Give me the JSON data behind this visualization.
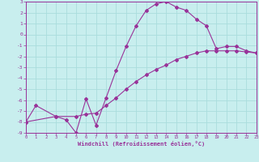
{
  "xlabel": "Windchill (Refroidissement éolien,°C)",
  "ylim": [
    -9,
    3
  ],
  "xlim": [
    0,
    23
  ],
  "yticks": [
    3,
    2,
    1,
    0,
    -1,
    -2,
    -3,
    -4,
    -5,
    -6,
    -7,
    -8,
    -9
  ],
  "xticks": [
    0,
    1,
    2,
    3,
    4,
    5,
    6,
    7,
    8,
    9,
    10,
    11,
    12,
    13,
    14,
    15,
    16,
    17,
    18,
    19,
    20,
    21,
    22,
    23
  ],
  "background_color": "#c8eeee",
  "grid_color": "#aadddd",
  "line_color": "#993399",
  "spine_color": "#993399",
  "curve1_x": [
    0,
    1,
    3,
    4,
    5,
    6,
    7,
    8,
    9,
    10,
    11,
    12,
    13,
    14,
    15,
    16,
    17,
    18,
    19,
    20,
    21,
    22,
    23
  ],
  "curve1_y": [
    -8.0,
    -6.5,
    -7.5,
    -7.8,
    -9.0,
    -5.9,
    -8.3,
    -5.8,
    -3.3,
    -1.1,
    0.8,
    2.2,
    2.8,
    3.0,
    2.5,
    2.2,
    1.4,
    0.8,
    -1.3,
    -1.1,
    -1.1,
    -1.5,
    -1.7
  ],
  "curve2_x": [
    0,
    3,
    5,
    6,
    7,
    8,
    9,
    10,
    11,
    12,
    13,
    14,
    15,
    16,
    17,
    18,
    19,
    20,
    21,
    22,
    23
  ],
  "curve2_y": [
    -8.0,
    -7.5,
    -7.5,
    -7.3,
    -7.2,
    -6.5,
    -5.8,
    -5.0,
    -4.3,
    -3.7,
    -3.2,
    -2.8,
    -2.3,
    -2.0,
    -1.7,
    -1.5,
    -1.5,
    -1.5,
    -1.5,
    -1.6,
    -1.7
  ]
}
